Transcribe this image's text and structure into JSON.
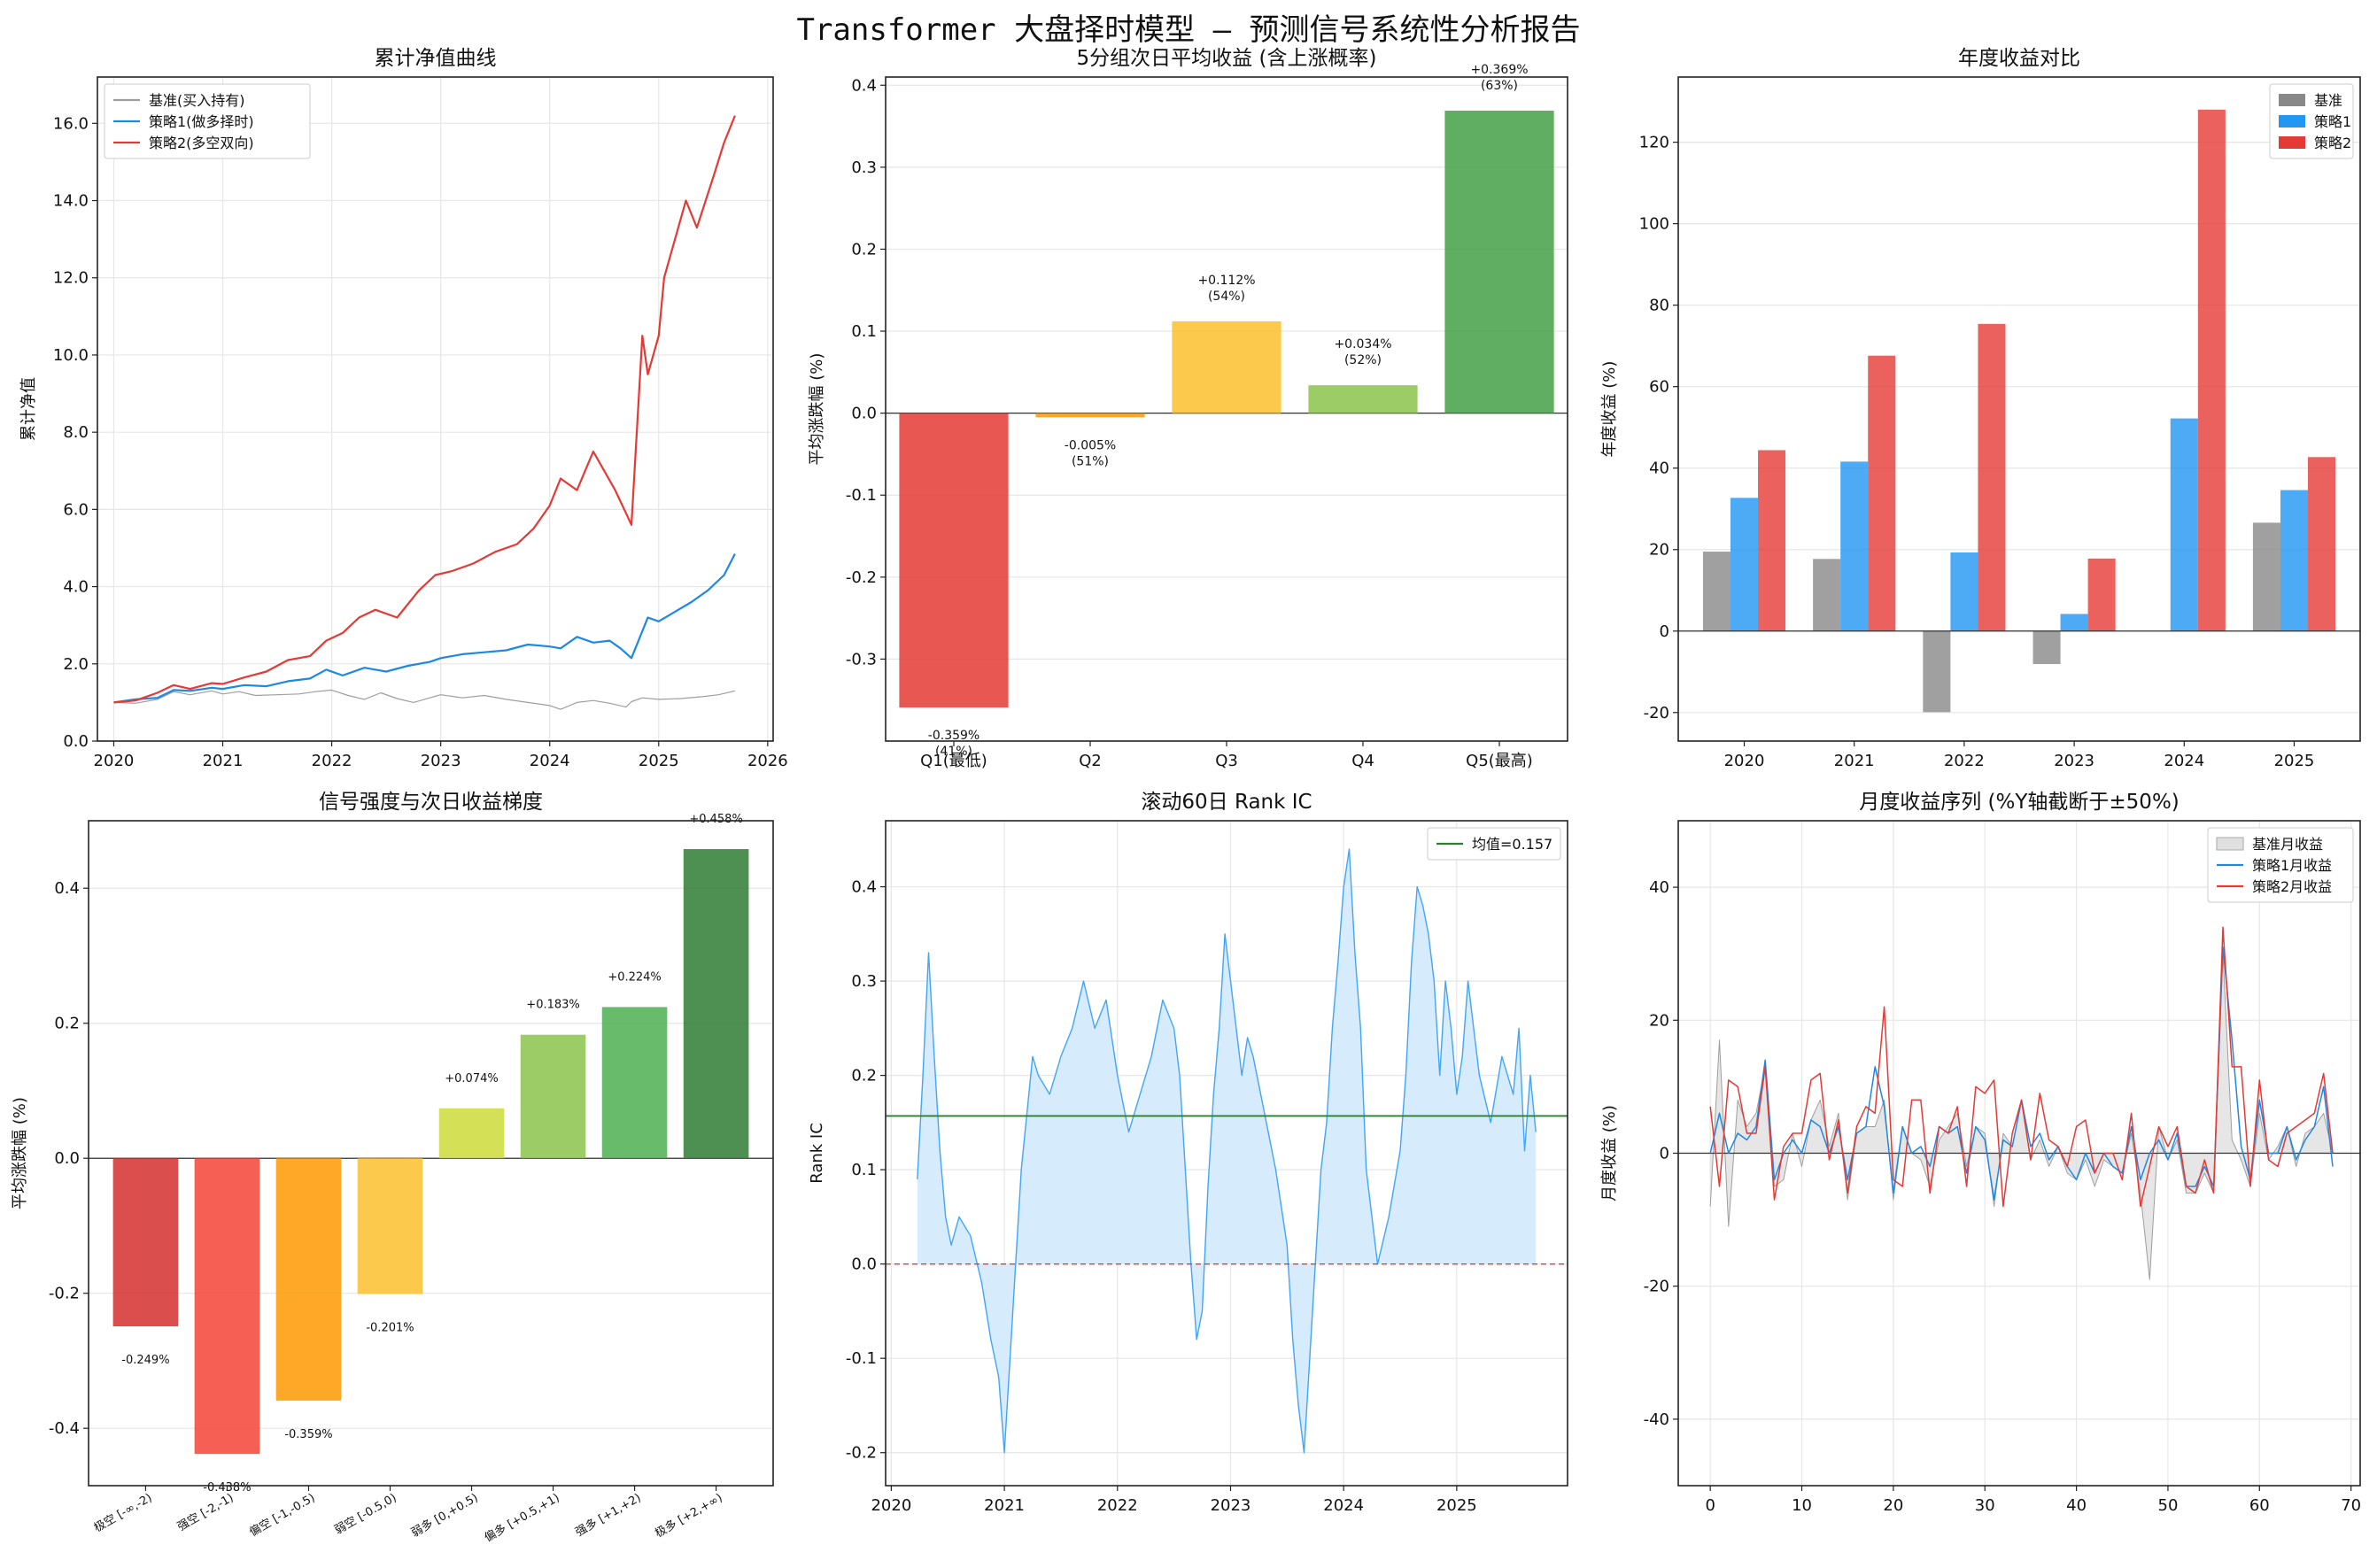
{
  "figure_title": "Transformer 大盘择时模型 — 预测信号系统性分析报告",
  "colors": {
    "benchmark": "#9e9e9e",
    "strategy1": "#1e88e5",
    "strategy2": "#e53935",
    "ic_line": "#42a5f5",
    "ic_fill": "#d6ebfb",
    "mean_line": "#2e7d32",
    "zero_line": "#e53935"
  },
  "chart_data": [
    {
      "id": "nav",
      "type": "line",
      "title": "累计净值曲线",
      "xlabel": "",
      "ylabel": "累计净值",
      "xlim": [
        2019.85,
        2026.05
      ],
      "ylim": [
        0,
        17.2
      ],
      "xticks": [
        2020,
        2021,
        2022,
        2023,
        2024,
        2025,
        2026
      ],
      "yticks": [
        0.0,
        2.0,
        4.0,
        6.0,
        8.0,
        10.0,
        12.0,
        14.0,
        16.0
      ],
      "grid": true,
      "legend": "top-left",
      "series": [
        {
          "name": "基准(买入持有)",
          "color": "#9e9e9e",
          "width": 1.2,
          "x": [
            2020.0,
            2020.2,
            2020.4,
            2020.55,
            2020.7,
            2020.9,
            2021.0,
            2021.15,
            2021.3,
            2021.5,
            2021.7,
            2021.85,
            2022.0,
            2022.15,
            2022.3,
            2022.45,
            2022.6,
            2022.75,
            2022.9,
            2023.0,
            2023.2,
            2023.4,
            2023.6,
            2023.8,
            2024.0,
            2024.1,
            2024.25,
            2024.4,
            2024.55,
            2024.7,
            2024.75,
            2024.85,
            2025.0,
            2025.2,
            2025.4,
            2025.55,
            2025.7
          ],
          "y": [
            1.0,
            0.98,
            1.08,
            1.28,
            1.2,
            1.3,
            1.22,
            1.28,
            1.18,
            1.2,
            1.22,
            1.28,
            1.32,
            1.18,
            1.08,
            1.25,
            1.1,
            1.0,
            1.12,
            1.2,
            1.12,
            1.18,
            1.08,
            1.0,
            0.92,
            0.82,
            1.0,
            1.05,
            0.98,
            0.88,
            1.02,
            1.12,
            1.08,
            1.1,
            1.15,
            1.2,
            1.3
          ]
        },
        {
          "name": "策略1(做多择时)",
          "color": "#1e88e5",
          "width": 2.2,
          "x": [
            2020.0,
            2020.2,
            2020.4,
            2020.55,
            2020.7,
            2020.9,
            2021.0,
            2021.2,
            2021.4,
            2021.6,
            2021.8,
            2021.95,
            2022.1,
            2022.3,
            2022.5,
            2022.7,
            2022.9,
            2023.0,
            2023.2,
            2023.4,
            2023.6,
            2023.8,
            2024.0,
            2024.1,
            2024.25,
            2024.4,
            2024.55,
            2024.65,
            2024.75,
            2024.9,
            2025.0,
            2025.15,
            2025.3,
            2025.45,
            2025.6,
            2025.7
          ],
          "y": [
            1.0,
            1.08,
            1.12,
            1.32,
            1.3,
            1.38,
            1.35,
            1.45,
            1.42,
            1.55,
            1.62,
            1.85,
            1.7,
            1.9,
            1.8,
            1.95,
            2.05,
            2.15,
            2.25,
            2.3,
            2.35,
            2.5,
            2.45,
            2.4,
            2.7,
            2.55,
            2.6,
            2.4,
            2.15,
            3.2,
            3.1,
            3.35,
            3.6,
            3.9,
            4.3,
            4.85
          ]
        },
        {
          "name": "策略2(多空双向)",
          "color": "#e53935",
          "width": 2.2,
          "x": [
            2020.0,
            2020.2,
            2020.4,
            2020.55,
            2020.7,
            2020.9,
            2021.0,
            2021.2,
            2021.4,
            2021.6,
            2021.8,
            2021.95,
            2022.1,
            2022.25,
            2022.4,
            2022.6,
            2022.8,
            2022.95,
            2023.1,
            2023.3,
            2023.5,
            2023.7,
            2023.85,
            2024.0,
            2024.1,
            2024.25,
            2024.4,
            2024.5,
            2024.6,
            2024.7,
            2024.75,
            2024.85,
            2024.9,
            2025.0,
            2025.05,
            2025.15,
            2025.25,
            2025.35,
            2025.5,
            2025.6,
            2025.7
          ],
          "y": [
            1.0,
            1.05,
            1.25,
            1.45,
            1.35,
            1.5,
            1.48,
            1.65,
            1.8,
            2.1,
            2.2,
            2.6,
            2.8,
            3.2,
            3.4,
            3.2,
            3.9,
            4.3,
            4.4,
            4.6,
            4.9,
            5.1,
            5.5,
            6.1,
            6.8,
            6.5,
            7.5,
            7.0,
            6.5,
            5.9,
            5.6,
            10.5,
            9.5,
            10.5,
            12.0,
            13.0,
            14.0,
            13.3,
            14.6,
            15.5,
            16.2
          ]
        }
      ]
    },
    {
      "id": "quintile",
      "type": "bar",
      "title": "5分组次日平均收益 (含上涨概率)",
      "xlabel": "",
      "ylabel": "平均涨跌幅 (%)",
      "ylim": [
        -0.4,
        0.41
      ],
      "yticks": [
        -0.3,
        -0.2,
        -0.1,
        0.0,
        0.1,
        0.2,
        0.3,
        0.4
      ],
      "grid": true,
      "categories": [
        "Q1(最低)",
        "Q2",
        "Q3",
        "Q4",
        "Q5(最高)"
      ],
      "values": [
        -0.359,
        -0.005,
        0.112,
        0.034,
        0.369
      ],
      "labels": [
        "-0.359%\n(41%)",
        "-0.005%\n(51%)",
        "+0.112%\n(54%)",
        "+0.034%\n(52%)",
        "+0.369%\n(63%)"
      ],
      "colors": [
        "#e53935",
        "#ff9800",
        "#fbc02d",
        "#8bc34a",
        "#43a047"
      ]
    },
    {
      "id": "annual",
      "type": "bar",
      "title": "年度收益对比",
      "xlabel": "",
      "ylabel": "年度收益 (%)",
      "ylim": [
        -27,
        136
      ],
      "yticks": [
        -20,
        0,
        20,
        40,
        60,
        80,
        100,
        120
      ],
      "grid": true,
      "legend": "top-right",
      "categories": [
        "2020",
        "2021",
        "2022",
        "2023",
        "2024",
        "2025"
      ],
      "series": [
        {
          "name": "基准",
          "color": "#888888",
          "values": [
            19.5,
            17.7,
            -19.9,
            -8.1,
            0.0,
            26.6
          ]
        },
        {
          "name": "策略1",
          "color": "#2196f3",
          "values": [
            32.7,
            41.6,
            19.3,
            4.2,
            52.2,
            34.6
          ]
        },
        {
          "name": "策略2",
          "color": "#e53935",
          "values": [
            44.4,
            67.6,
            75.4,
            17.8,
            128.0,
            42.7
          ]
        }
      ]
    },
    {
      "id": "gradient",
      "type": "bar",
      "title": "信号强度与次日收益梯度",
      "xlabel": "",
      "ylabel": "平均涨跌幅 (%)",
      "ylim": [
        -0.485,
        0.5
      ],
      "yticks": [
        -0.4,
        -0.2,
        0.0,
        0.2,
        0.4
      ],
      "grid": true,
      "categories": [
        "极空 [-∞,-2)",
        "强空 [-2,-1)",
        "偏空 [-1,-0.5)",
        "弱空 [-0.5,0)",
        "弱多 [0,+0.5)",
        "偏多 [+0.5,+1)",
        "强多 [+1,+2)",
        "极多 [+2,+∞)"
      ],
      "values": [
        -0.249,
        -0.438,
        -0.359,
        -0.201,
        0.074,
        0.183,
        0.224,
        0.458
      ],
      "labels": [
        "-0.249%",
        "-0.438%",
        "-0.359%",
        "-0.201%",
        "+0.074%",
        "+0.183%",
        "+0.224%",
        "+0.458%"
      ],
      "colors": [
        "#d32f2f",
        "#f44336",
        "#ff9800",
        "#fbc02d",
        "#cddc39",
        "#8bc34a",
        "#4caf50",
        "#2e7d32"
      ]
    },
    {
      "id": "rankic",
      "type": "area",
      "title": "滚动60日 Rank IC",
      "xlabel": "",
      "ylabel": "Rank IC",
      "xlim": [
        2019.95,
        2025.98
      ],
      "ylim": [
        -0.235,
        0.47
      ],
      "xticks": [
        2020,
        2021,
        2022,
        2023,
        2024,
        2025
      ],
      "yticks": [
        -0.2,
        -0.1,
        0.0,
        0.1,
        0.2,
        0.3,
        0.4
      ],
      "grid": true,
      "legend": "top-right",
      "mean": 0.157,
      "mean_label": "均值=0.157",
      "x": [
        2020.23,
        2020.28,
        2020.33,
        2020.38,
        2020.43,
        2020.48,
        2020.53,
        2020.6,
        2020.7,
        2020.8,
        2020.88,
        2020.95,
        2021.0,
        2021.05,
        2021.1,
        2021.15,
        2021.2,
        2021.25,
        2021.3,
        2021.4,
        2021.5,
        2021.6,
        2021.7,
        2021.8,
        2021.9,
        2022.0,
        2022.1,
        2022.2,
        2022.3,
        2022.4,
        2022.5,
        2022.55,
        2022.6,
        2022.65,
        2022.7,
        2022.75,
        2022.8,
        2022.85,
        2022.9,
        2022.95,
        2023.0,
        2023.05,
        2023.1,
        2023.15,
        2023.2,
        2023.3,
        2023.4,
        2023.5,
        2023.55,
        2023.6,
        2023.65,
        2023.7,
        2023.75,
        2023.8,
        2023.85,
        2023.9,
        2023.95,
        2024.0,
        2024.05,
        2024.1,
        2024.15,
        2024.2,
        2024.3,
        2024.4,
        2024.5,
        2024.55,
        2024.6,
        2024.65,
        2024.7,
        2024.75,
        2024.8,
        2024.85,
        2024.9,
        2024.95,
        2025.0,
        2025.05,
        2025.1,
        2025.15,
        2025.2,
        2025.3,
        2025.4,
        2025.5,
        2025.55,
        2025.6,
        2025.65,
        2025.7
      ],
      "values": [
        0.09,
        0.2,
        0.33,
        0.22,
        0.12,
        0.05,
        0.02,
        0.05,
        0.03,
        -0.02,
        -0.08,
        -0.12,
        -0.2,
        -0.1,
        0.0,
        0.1,
        0.16,
        0.22,
        0.2,
        0.18,
        0.22,
        0.25,
        0.3,
        0.25,
        0.28,
        0.2,
        0.14,
        0.18,
        0.22,
        0.28,
        0.25,
        0.2,
        0.1,
        0.0,
        -0.08,
        -0.05,
        0.08,
        0.18,
        0.25,
        0.35,
        0.3,
        0.25,
        0.2,
        0.24,
        0.22,
        0.16,
        0.1,
        0.02,
        -0.08,
        -0.15,
        -0.2,
        -0.1,
        0.0,
        0.1,
        0.15,
        0.25,
        0.32,
        0.4,
        0.44,
        0.33,
        0.25,
        0.1,
        0.0,
        0.05,
        0.12,
        0.2,
        0.32,
        0.4,
        0.38,
        0.35,
        0.3,
        0.2,
        0.3,
        0.25,
        0.18,
        0.22,
        0.3,
        0.25,
        0.2,
        0.15,
        0.22,
        0.18,
        0.25,
        0.12,
        0.2,
        0.14
      ]
    },
    {
      "id": "monthly",
      "type": "line",
      "title": "月度收益序列 (%Y轴截断于±50%)",
      "xlabel": "",
      "ylabel": "月度收益 (%)",
      "xlim": [
        -3.5,
        71
      ],
      "ylim": [
        -50,
        50
      ],
      "xticks": [
        0,
        10,
        20,
        30,
        40,
        50,
        60,
        70
      ],
      "yticks": [
        -40,
        -20,
        0,
        20,
        40
      ],
      "grid": true,
      "legend": "top-right",
      "series": [
        {
          "name": "基准月收益",
          "color": "#9e9e9e",
          "values": [
            -8,
            17,
            -11,
            8,
            4,
            6,
            13,
            -5,
            -4,
            3,
            -2,
            5,
            8,
            1,
            6,
            -7,
            3,
            4,
            4,
            8,
            -7,
            4,
            0,
            -1,
            -5,
            2,
            4,
            6,
            -2,
            4,
            3,
            -8,
            3,
            1,
            8,
            -1,
            2,
            -2,
            1,
            -3,
            -4,
            -1,
            -5,
            -1,
            -2,
            -3,
            3,
            -6,
            -19,
            4,
            -1,
            2,
            -6,
            -6,
            -3,
            -6,
            30,
            2,
            -1,
            -5,
            6,
            -1,
            1,
            4,
            -2,
            3,
            4,
            6,
            0
          ]
        },
        {
          "name": "策略1月收益",
          "color": "#1e88e5",
          "values": [
            0,
            6,
            0,
            3,
            2,
            4,
            14,
            -4,
            0,
            2,
            0,
            5,
            4,
            0,
            4,
            -4,
            3,
            4,
            13,
            7,
            -6,
            4,
            0,
            1,
            -2,
            4,
            3,
            4,
            -3,
            4,
            2,
            -7,
            2,
            1,
            8,
            1,
            3,
            -1,
            1,
            -2,
            -4,
            0,
            -3,
            0,
            -2,
            -3,
            4,
            -4,
            0,
            2,
            -1,
            3,
            -5,
            -5,
            -2,
            -5,
            31,
            17,
            1,
            -4,
            8,
            0,
            0,
            4,
            -1,
            2,
            4,
            10,
            -2
          ]
        },
        {
          "name": "策略2月收益",
          "color": "#e53935",
          "values": [
            7,
            -5,
            11,
            10,
            3,
            3,
            13,
            -7,
            1,
            3,
            3,
            11,
            12,
            -1,
            5,
            -6,
            4,
            7,
            6,
            22,
            -4,
            -5,
            8,
            8,
            -6,
            4,
            3,
            7,
            -5,
            10,
            9,
            11,
            -8,
            3,
            8,
            -1,
            9,
            2,
            1,
            -2,
            4,
            5,
            -3,
            0,
            0,
            -4,
            6,
            -8,
            -2,
            4,
            1,
            4,
            -5,
            -6,
            -1,
            -6,
            34,
            13,
            13,
            -5,
            11,
            -1,
            -2,
            3,
            4,
            5,
            6,
            12,
            0
          ]
        }
      ]
    }
  ]
}
